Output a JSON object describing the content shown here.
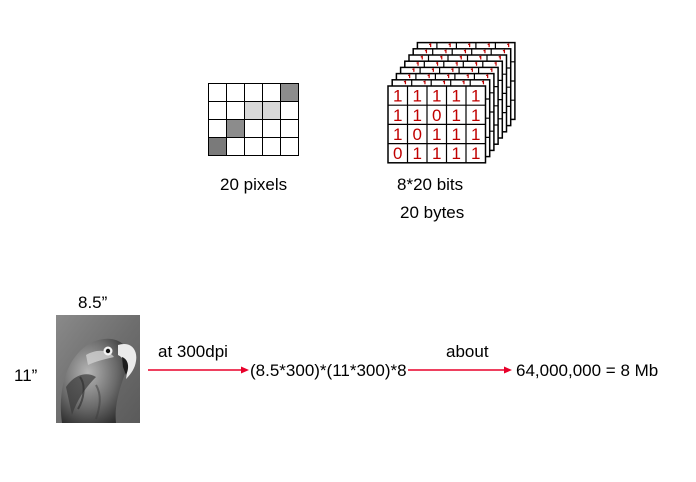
{
  "pixel_grid": {
    "caption": "20 pixels",
    "rows": [
      [
        "white",
        "white",
        "white",
        "white",
        "dark"
      ],
      [
        "white",
        "white",
        "light",
        "light",
        "white"
      ],
      [
        "white",
        "dark",
        "white",
        "white",
        "white"
      ],
      [
        "darker",
        "white",
        "white",
        "white",
        "white"
      ]
    ],
    "colors": {
      "white": "#ffffff",
      "light": "#d8d8d8",
      "dark": "#8c8c8c",
      "darker": "#7a7a7a"
    }
  },
  "bit_stack": {
    "caption_bits": "8*20 bits",
    "caption_bytes": "20 bytes",
    "bits": [
      [
        "1",
        "1",
        "1",
        "1",
        "1"
      ],
      [
        "1",
        "1",
        "0",
        "1",
        "1"
      ],
      [
        "1",
        "0",
        "1",
        "1",
        "1"
      ],
      [
        "0",
        "1",
        "1",
        "1",
        "1"
      ]
    ],
    "bit_color": "#c00000"
  },
  "image_example": {
    "width_label": "8.5”",
    "height_label": "11”",
    "step1_label": "at 300dpi",
    "formula": "(8.5*300)*(11*300)*8",
    "step2_label": "about",
    "result": "64,000,000 = 8 Mb",
    "arrow_color": "#e8002a"
  }
}
